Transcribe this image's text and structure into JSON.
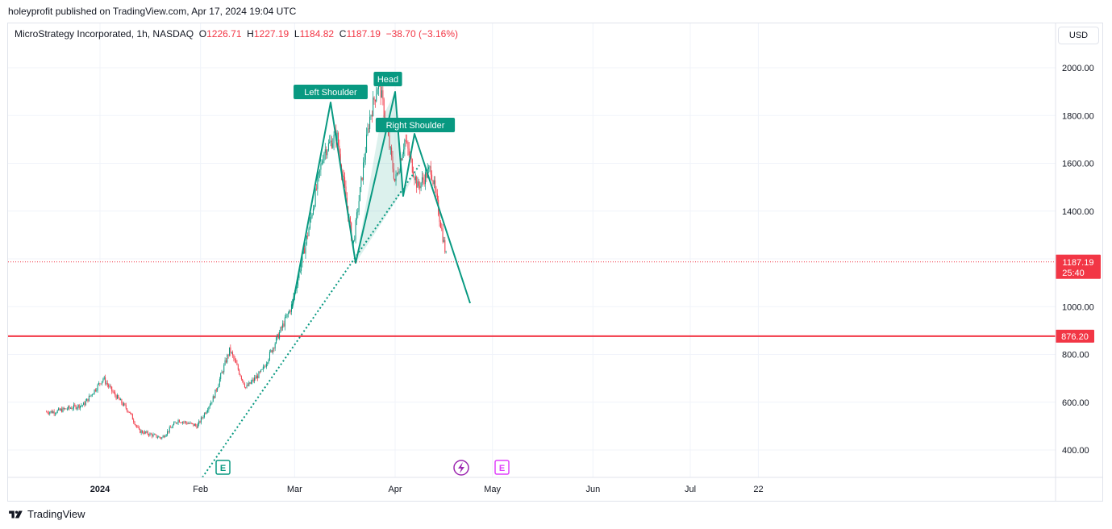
{
  "header": {
    "publisher_line": "holeyprofit published on TradingView.com, Apr 17, 2024 19:04 UTC"
  },
  "legend": {
    "symbol": "MicroStrategy Incorporated, 1h, NASDAQ",
    "o_label": "O",
    "o_value": "1226.71",
    "h_label": "H",
    "h_value": "1227.19",
    "l_label": "L",
    "l_value": "1184.82",
    "c_label": "C",
    "c_value": "1187.19",
    "change": "−38.70 (−3.16%)"
  },
  "currency_button": "USD",
  "footer": {
    "brand": "TradingView"
  },
  "colors": {
    "up": "#089981",
    "down": "#f23645",
    "pattern": "#089981",
    "hline": "#f23645",
    "grid": "#f0f3fa",
    "axis_text": "#131722",
    "dividend_icon": "#9c27b0",
    "earnings_icon_future": "#e040fb"
  },
  "chart_data": {
    "type": "candlestick",
    "symbol": "MSTR",
    "timeframe": "1h",
    "ylim": [
      300,
      2090
    ],
    "y_ticks": [
      "400.00",
      "600.00",
      "800.00",
      "1000.00",
      "1400.00",
      "1600.00",
      "1800.00",
      "2000.00"
    ],
    "x_ticks": [
      "2024",
      "Feb",
      "Mar",
      "Apr",
      "May",
      "Jun",
      "Jul",
      "22"
    ],
    "price_label": {
      "value": "1187.19",
      "countdown": "25:40"
    },
    "horizontal_line": {
      "value": "876.20"
    },
    "annotations": [
      "Left Shoulder",
      "Head",
      "Right Shoulder"
    ],
    "close_path_approx": [
      [
        "2023-12-18",
        560
      ],
      [
        "2023-12-27",
        590
      ],
      [
        "2024-01-02",
        700
      ],
      [
        "2024-01-05",
        640
      ],
      [
        "2024-01-10",
        560
      ],
      [
        "2024-01-13",
        480
      ],
      [
        "2024-01-20",
        450
      ],
      [
        "2024-01-25",
        525
      ],
      [
        "2024-01-31",
        500
      ],
      [
        "2024-02-05",
        620
      ],
      [
        "2024-02-10",
        820
      ],
      [
        "2024-02-15",
        660
      ],
      [
        "2024-02-20",
        730
      ],
      [
        "2024-02-26",
        910
      ],
      [
        "2024-02-29",
        1000
      ],
      [
        "2024-03-05",
        1300
      ],
      [
        "2024-03-10",
        1650
      ],
      [
        "2024-03-14",
        1720
      ],
      [
        "2024-03-19",
        1250
      ],
      [
        "2024-03-24",
        1780
      ],
      [
        "2024-03-27",
        1950
      ],
      [
        "2024-04-01",
        1520
      ],
      [
        "2024-04-04",
        1700
      ],
      [
        "2024-04-08",
        1500
      ],
      [
        "2024-04-12",
        1580
      ],
      [
        "2024-04-15",
        1350
      ],
      [
        "2024-04-17",
        1187.19
      ]
    ]
  }
}
